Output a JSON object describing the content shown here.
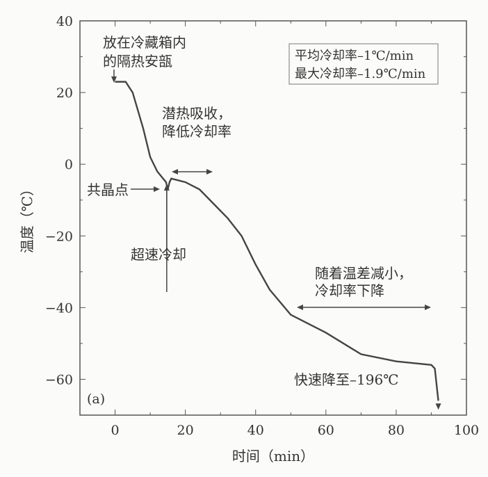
{
  "chart_data": {
    "type": "line",
    "panel_label": "(a)",
    "xlabel": "时间（min）",
    "ylabel": "温度（℃）",
    "xlim": [
      -10,
      100
    ],
    "ylim": [
      -70,
      40
    ],
    "xticks": [
      0,
      20,
      40,
      60,
      80,
      100
    ],
    "yticks": [
      40,
      20,
      0,
      -20,
      -40,
      -60
    ],
    "grid": false,
    "series": [
      {
        "x": [
          0,
          3,
          5,
          8,
          10,
          12,
          14.5,
          15,
          15.5,
          16,
          20,
          24,
          28,
          32,
          36,
          40,
          44,
          50,
          60,
          70,
          80,
          90,
          91,
          92
        ],
        "y": [
          23,
          23,
          20,
          10,
          2,
          -2,
          -5,
          -7,
          -5,
          -4,
          -5,
          -7,
          -11,
          -15,
          -20,
          -28,
          -35,
          -42,
          -47,
          -53,
          -55,
          -56,
          -57,
          -66
        ]
      }
    ],
    "legend_box": [
      "平均冷却率–1℃/min",
      "最大冷却率–1.9℃/min"
    ],
    "annotations": [
      {
        "text": [
          "放在冷藏箱内",
          "的隔热安瓿"
        ]
      },
      {
        "text": [
          "潜热吸收，",
          "降低冷却率"
        ]
      },
      {
        "text": [
          "共晶点"
        ]
      },
      {
        "text": [
          "超速冷却"
        ]
      },
      {
        "text": [
          "随着温差减小，",
          "冷却率下降"
        ]
      },
      {
        "text": [
          "快速降至–196℃"
        ]
      }
    ],
    "line_color": "#444444"
  }
}
